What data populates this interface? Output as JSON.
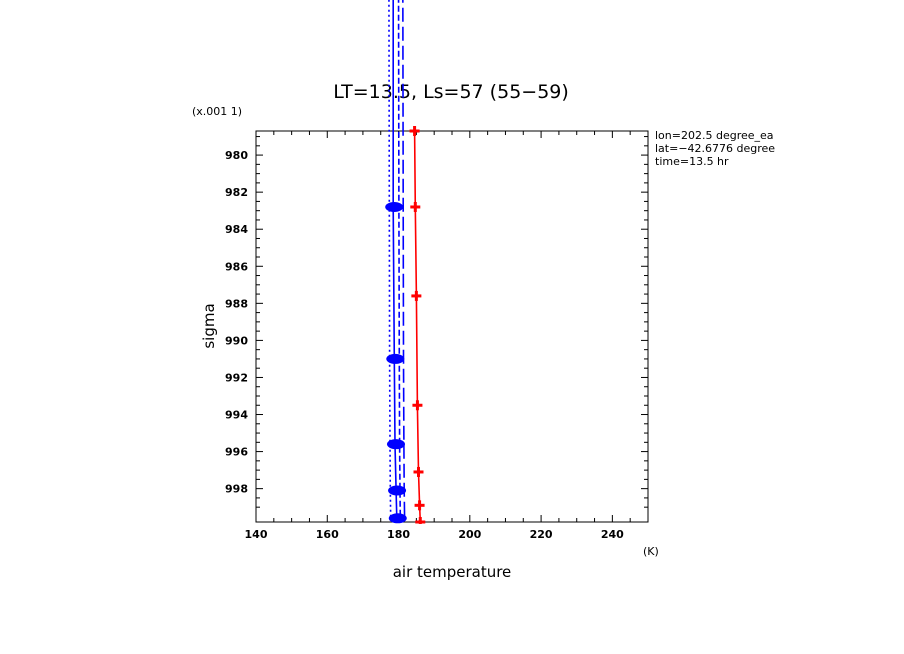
{
  "chart_data": {
    "type": "line",
    "title": "LT=13.5, Ls=57 (55−59)",
    "xlabel": "air temperature",
    "ylabel": "sigma",
    "x_unit": "(K)",
    "y_scale_note": "(x.001 1)",
    "xlim": [
      140,
      250
    ],
    "ylim": [
      978.7,
      999.8
    ],
    "y_reversed": true,
    "x_ticks": [
      140,
      160,
      180,
      200,
      220,
      240
    ],
    "y_ticks": [
      980,
      982,
      984,
      986,
      988,
      990,
      992,
      994,
      996,
      998
    ],
    "annotations": [
      "lon=202.5 degree_ea",
      "lat=−42.6776 degree",
      "time=13.5 hr"
    ],
    "series": [
      {
        "color": "#ff0000",
        "style": "solid-markers",
        "points": [
          {
            "x": 184.5,
            "y": 978.7
          },
          {
            "x": 184.7,
            "y": 982.8
          },
          {
            "x": 185.0,
            "y": 987.6
          },
          {
            "x": 185.3,
            "y": 993.5
          },
          {
            "x": 185.6,
            "y": 997.1
          },
          {
            "x": 185.9,
            "y": 998.9
          },
          {
            "x": 186.1,
            "y": 999.8
          }
        ]
      },
      {
        "color": "#0000ff",
        "style": "solid-markers",
        "points": [
          {
            "x": 178.5,
            "y": 970.0
          },
          {
            "x": 178.5,
            "y": 982.8
          },
          {
            "x": 178.8,
            "y": 991.0
          },
          {
            "x": 179.0,
            "y": 995.6
          },
          {
            "x": 179.3,
            "y": 998.1
          },
          {
            "x": 179.5,
            "y": 999.6
          }
        ]
      },
      {
        "color": "#0000ff",
        "style": "dashed",
        "points": [
          {
            "x": 180.0,
            "y": 970.0
          },
          {
            "x": 180.1,
            "y": 982.8
          },
          {
            "x": 180.2,
            "y": 991.0
          },
          {
            "x": 180.3,
            "y": 995.6
          },
          {
            "x": 180.4,
            "y": 998.1
          },
          {
            "x": 180.5,
            "y": 999.6
          }
        ]
      },
      {
        "color": "#0000ff",
        "style": "dotted",
        "points": [
          {
            "x": 177.3,
            "y": 970.0
          },
          {
            "x": 177.4,
            "y": 982.8
          },
          {
            "x": 177.5,
            "y": 991.0
          },
          {
            "x": 177.6,
            "y": 995.6
          },
          {
            "x": 177.7,
            "y": 998.1
          },
          {
            "x": 177.8,
            "y": 999.6
          }
        ]
      },
      {
        "color": "#0000ff",
        "style": "dash-long",
        "points": [
          {
            "x": 181.2,
            "y": 970.0
          },
          {
            "x": 181.3,
            "y": 982.8
          },
          {
            "x": 181.4,
            "y": 991.0
          },
          {
            "x": 181.5,
            "y": 995.6
          },
          {
            "x": 181.6,
            "y": 998.1
          },
          {
            "x": 181.7,
            "y": 999.6
          }
        ]
      }
    ]
  }
}
